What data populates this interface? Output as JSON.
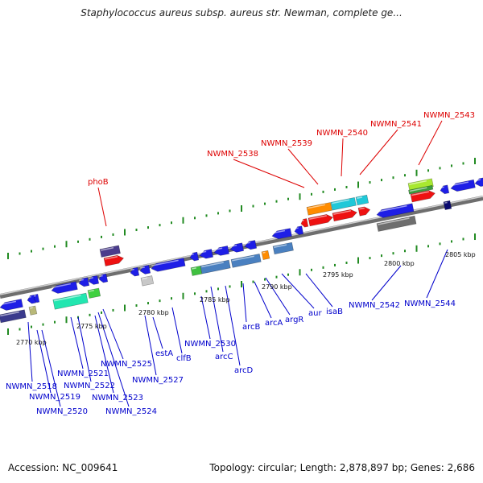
{
  "header": {
    "title": "Staphylococcus aureus subsp. aureus str. Newman, complete ge..."
  },
  "footer": {
    "accession": "Accession: NC_009641",
    "summary": "Topology: circular; Length: 2,878,897 bp; Genes: 2,686"
  },
  "colors": {
    "label_blue": "#0000cc",
    "label_red": "#dd0000",
    "backbone": "#8c8c8c",
    "tick_green": "#228b22"
  },
  "scale_labels": [
    "2770 kbp",
    "2775 kbp",
    "2780 kbp",
    "2785 kbp",
    "2790 kbp",
    "2795 kbp",
    "2800 kbp",
    "2805 kbp"
  ],
  "gene_labels_top": [
    "phoB",
    "NWMN_2538",
    "NWMN_2539",
    "NWMN_2540",
    "NWMN_2541",
    "NWMN_2543"
  ],
  "gene_labels_bottom": [
    "NWMN_2518",
    "NWMN_2519",
    "NWMN_2520",
    "NWMN_2521",
    "NWMN_2522",
    "NWMN_2523",
    "NWMN_2524",
    "NWMN_2525",
    "NWMN_2527",
    "estA",
    "clfB",
    "NWMN_2530",
    "arcC",
    "arcD",
    "arcB",
    "arcA",
    "argR",
    "aur",
    "isaB",
    "NWMN_2542",
    "NWMN_2544"
  ]
}
